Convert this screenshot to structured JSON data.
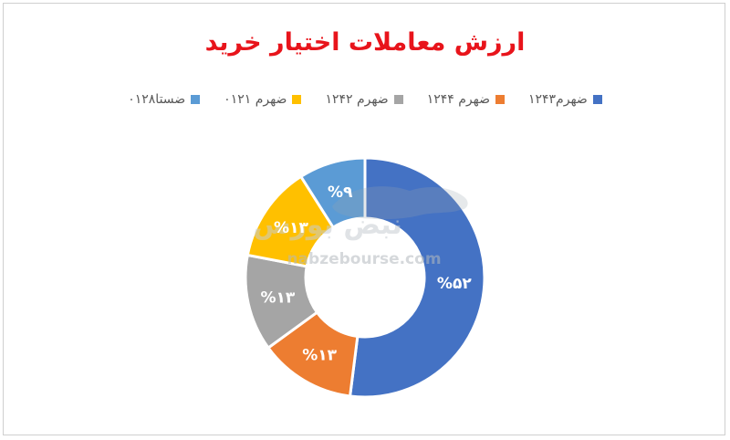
{
  "watermark": {
    "site": "nabzebourse.com",
    "brand": "نبض بورس"
  },
  "chart_data": {
    "type": "pie",
    "title": "ارزش معاملات اختیار خرید",
    "legend_position": "top",
    "legend": [
      "ضهرم۱۲۴۳",
      "ضهرم ۱۲۴۴",
      "ضهرم ۱۲۴۲",
      "ضهرم ۰۱۲۱",
      "ضستا۰۱۲۸"
    ],
    "series": [
      {
        "name": "ضهرم۱۲۴۳",
        "value": 52,
        "label": "%۵۲",
        "color": "#4472c4"
      },
      {
        "name": "ضهرم ۱۲۴۴",
        "value": 13,
        "label": "%۱۳",
        "color": "#ed7d31"
      },
      {
        "name": "ضهرم ۱۲۴۲",
        "value": 13,
        "label": "%۱۳",
        "color": "#a5a5a5"
      },
      {
        "name": "ضهرم ۰۱۲۱",
        "value": 13,
        "label": "%۱۳",
        "color": "#ffc000"
      },
      {
        "name": "ضستا۰۱۲۸",
        "value": 9,
        "label": "%۹",
        "color": "#5b9bd5"
      }
    ]
  }
}
